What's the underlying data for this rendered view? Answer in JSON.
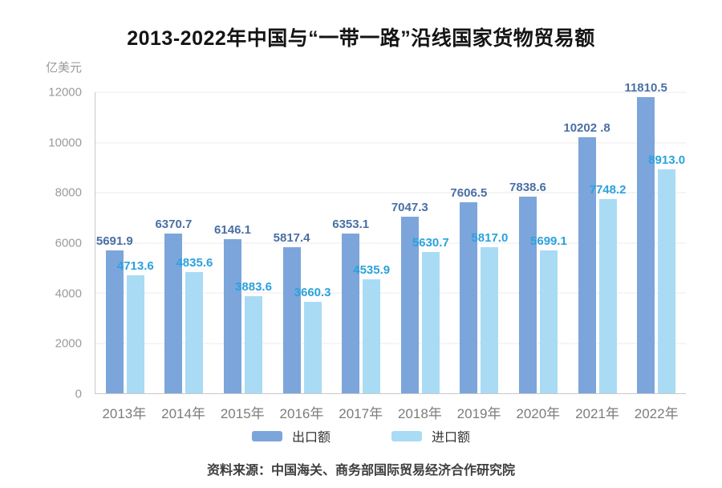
{
  "title": "2013-2022年中国与“一带一路”沿线国家货物贸易额",
  "unit_label": "亿美元",
  "source": "资料来源：中国海关、商务部国际贸易经济合作研究院",
  "legend": {
    "export_label": "出口额",
    "import_label": "进口额"
  },
  "colors": {
    "export_bar": "#7CA5DB",
    "import_bar": "#A9DBF5",
    "export_value_label": "#4A6FA5",
    "import_value_label": "#2BA2DC",
    "gridline": "#D8D8D8",
    "axis": "#C9C9C9",
    "ytick_text": "#9B9B9B",
    "xtick_text": "#7C7C7C",
    "title_text": "#141414",
    "source_text": "#3E3E3E"
  },
  "chart_data": {
    "type": "bar",
    "title": "2013-2022年中国与“一带一路”沿线国家货物贸易额",
    "ylabel": "亿美元",
    "xlabel": "",
    "ylim": [
      0,
      12000
    ],
    "yticks": [
      0,
      2000,
      4000,
      6000,
      8000,
      10000,
      12000
    ],
    "grid": true,
    "gridline_style": "dotted",
    "legend_position": "bottom",
    "categories": [
      "2013年",
      "2014年",
      "2015年",
      "2016年",
      "2017年",
      "2018年",
      "2019年",
      "2020年",
      "2021年",
      "2022年"
    ],
    "series": [
      {
        "name": "出口额",
        "values": [
          5691.9,
          6370.7,
          6146.1,
          5817.4,
          6353.1,
          7047.3,
          7606.5,
          7838.6,
          10202.8,
          11810.5
        ],
        "labels": [
          "5691.9",
          "6370.7",
          "6146.1",
          "5817.4",
          "6353.1",
          "7047.3",
          "7606.5",
          "7838.6",
          "10202 .8",
          "11810.5"
        ]
      },
      {
        "name": "进口额",
        "values": [
          4713.6,
          4835.6,
          3883.6,
          3660.3,
          4535.9,
          5630.7,
          5817.0,
          5699.1,
          7748.2,
          8913.0
        ],
        "labels": [
          "4713.6",
          "4835.6",
          "3883.6",
          "3660.3",
          "4535.9",
          "5630.7",
          "5817.0",
          "5699.1",
          "7748.2",
          "8913.0"
        ]
      }
    ]
  }
}
